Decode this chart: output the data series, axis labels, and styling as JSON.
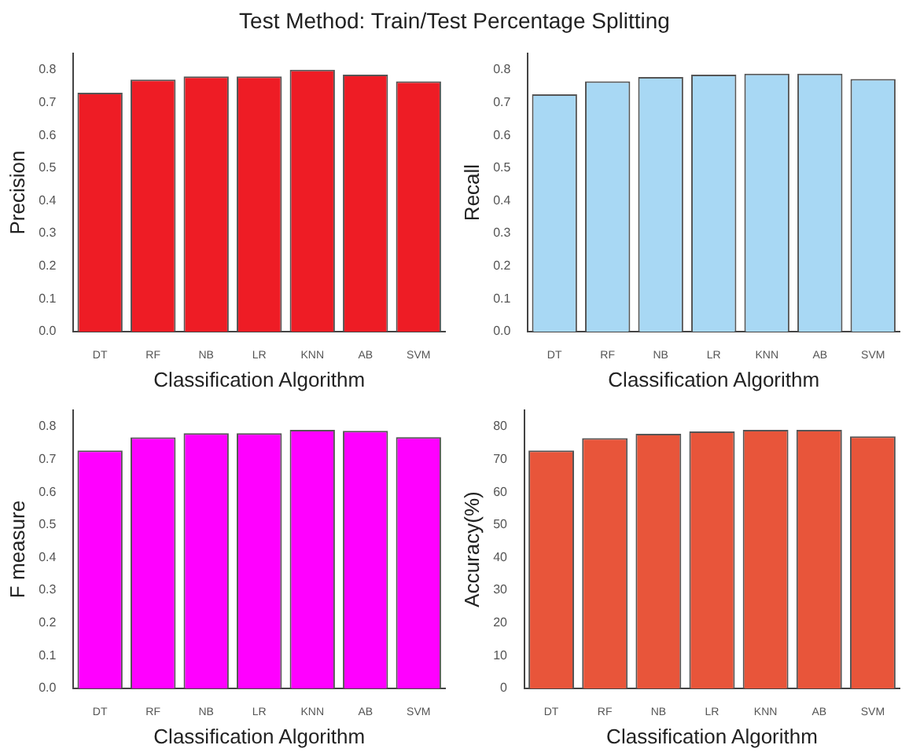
{
  "chart_data": [
    {
      "type": "bar",
      "title": "Test Method: Train/Test Percentage Splitting",
      "xlabel": "Classification Algorithm",
      "ylabel": "Precision",
      "categories": [
        "DT",
        "RF",
        "NB",
        "LR",
        "KNN",
        "AB",
        "SVM"
      ],
      "values": [
        0.73,
        0.77,
        0.78,
        0.78,
        0.8,
        0.785,
        0.765
      ],
      "color": "#ee1c25",
      "ylim": [
        0,
        0.85
      ],
      "yticks": [
        {
          "value": 0,
          "label": "0.0"
        },
        {
          "value": 0.1,
          "label": "0.1"
        },
        {
          "value": 0.2,
          "label": "0.2"
        },
        {
          "value": 0.3,
          "label": "0.3"
        },
        {
          "value": 0.4,
          "label": "0.4"
        },
        {
          "value": 0.5,
          "label": "0.5"
        },
        {
          "value": 0.6,
          "label": "0.6"
        },
        {
          "value": 0.7,
          "label": "0.7"
        },
        {
          "value": 0.8,
          "label": "0.8"
        }
      ],
      "grid": false,
      "legend": false
    },
    {
      "type": "bar",
      "xlabel": "Classification Algorithm",
      "ylabel": "Recall",
      "categories": [
        "DT",
        "RF",
        "NB",
        "LR",
        "KNN",
        "AB",
        "SVM"
      ],
      "values": [
        0.725,
        0.765,
        0.778,
        0.785,
        0.788,
        0.788,
        0.772
      ],
      "color": "#a8d8f4",
      "ylim": [
        0,
        0.85
      ],
      "yticks": [
        {
          "value": 0,
          "label": "0.0"
        },
        {
          "value": 0.1,
          "label": "0.1"
        },
        {
          "value": 0.2,
          "label": "0.2"
        },
        {
          "value": 0.3,
          "label": "0.3"
        },
        {
          "value": 0.4,
          "label": "0.4"
        },
        {
          "value": 0.5,
          "label": "0.5"
        },
        {
          "value": 0.6,
          "label": "0.6"
        },
        {
          "value": 0.7,
          "label": "0.7"
        },
        {
          "value": 0.8,
          "label": "0.8"
        }
      ],
      "grid": false,
      "legend": false
    },
    {
      "type": "bar",
      "xlabel": "Classification Algorithm",
      "ylabel": "F measure",
      "categories": [
        "DT",
        "RF",
        "NB",
        "LR",
        "KNN",
        "AB",
        "SVM"
      ],
      "values": [
        0.727,
        0.767,
        0.78,
        0.78,
        0.79,
        0.787,
        0.768
      ],
      "color": "#ff00ff",
      "ylim": [
        0,
        0.85
      ],
      "yticks": [
        {
          "value": 0,
          "label": "0.0"
        },
        {
          "value": 0.1,
          "label": "0.1"
        },
        {
          "value": 0.2,
          "label": "0.2"
        },
        {
          "value": 0.3,
          "label": "0.3"
        },
        {
          "value": 0.4,
          "label": "0.4"
        },
        {
          "value": 0.5,
          "label": "0.5"
        },
        {
          "value": 0.6,
          "label": "0.6"
        },
        {
          "value": 0.7,
          "label": "0.7"
        },
        {
          "value": 0.8,
          "label": "0.8"
        }
      ],
      "grid": false,
      "legend": false
    },
    {
      "type": "bar",
      "xlabel": "Classification Algorithm",
      "ylabel": "Accuracy(%)",
      "categories": [
        "DT",
        "RF",
        "NB",
        "LR",
        "KNN",
        "AB",
        "SVM"
      ],
      "values": [
        72.7,
        76.5,
        77.8,
        78.5,
        79,
        79,
        77
      ],
      "color": "#e8553a",
      "ylim": [
        0,
        85
      ],
      "yticks": [
        0,
        10,
        20,
        30,
        40,
        50,
        60,
        70,
        80
      ],
      "grid": false,
      "legend": false
    }
  ]
}
